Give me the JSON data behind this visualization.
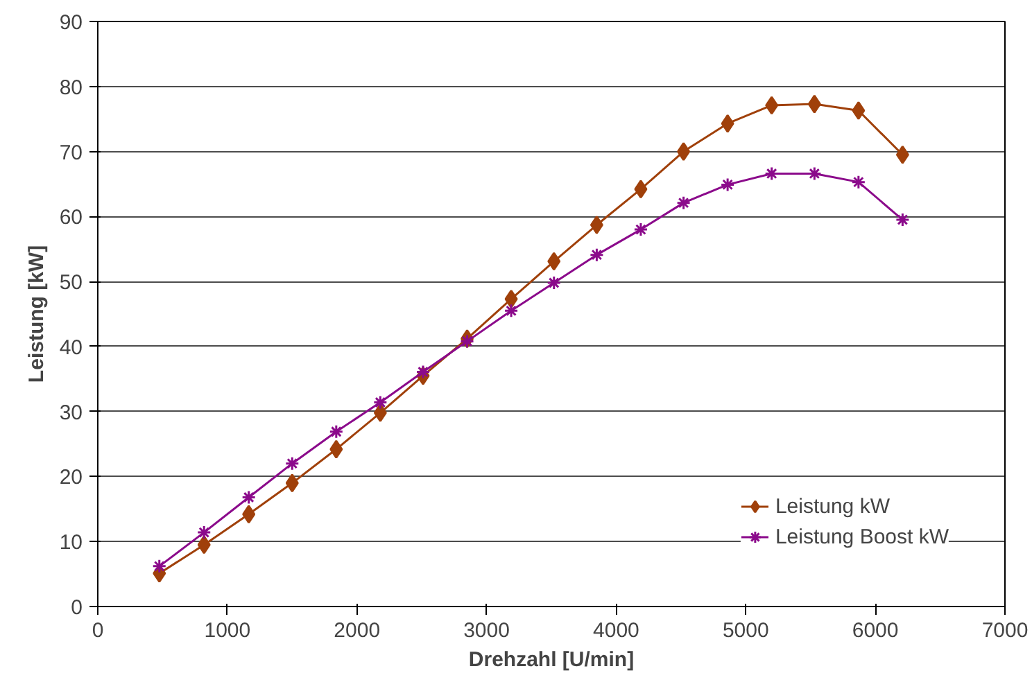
{
  "chart_data": {
    "type": "line",
    "xlabel": "Drehzahl [U/min]",
    "ylabel": "Leistung [kW]",
    "x": [
      475,
      820,
      1165,
      1500,
      1840,
      2180,
      2510,
      2850,
      3190,
      3520,
      3850,
      4190,
      4520,
      4860,
      5200,
      5530,
      5870,
      6210
    ],
    "series": [
      {
        "name": "Leistung kW",
        "color": "#a0400a",
        "marker": "diamond",
        "values": [
          5.1,
          9.5,
          14.2,
          19,
          24.2,
          29.8,
          35.5,
          41.2,
          47.3,
          53.1,
          58.7,
          64.2,
          70,
          74.3,
          77.1,
          77.3,
          76.3,
          69.5
        ]
      },
      {
        "name": "Leistung Boost kW",
        "color": "#8b0a8b",
        "marker": "cross",
        "values": [
          6.2,
          11.4,
          16.8,
          22,
          26.9,
          31.4,
          36.1,
          40.8,
          45.5,
          49.8,
          54.1,
          58,
          62.1,
          64.9,
          66.6,
          66.6,
          65.3,
          59.5
        ]
      }
    ],
    "xlim": [
      0,
      7000
    ],
    "ylim": [
      0,
      90
    ],
    "xticks": [
      0,
      1000,
      2000,
      3000,
      4000,
      5000,
      6000,
      7000
    ],
    "yticks": [
      0,
      10,
      20,
      30,
      40,
      50,
      60,
      70,
      80,
      90
    ],
    "grid": "y",
    "legend": "bottom right",
    "line_style": "solid"
  }
}
